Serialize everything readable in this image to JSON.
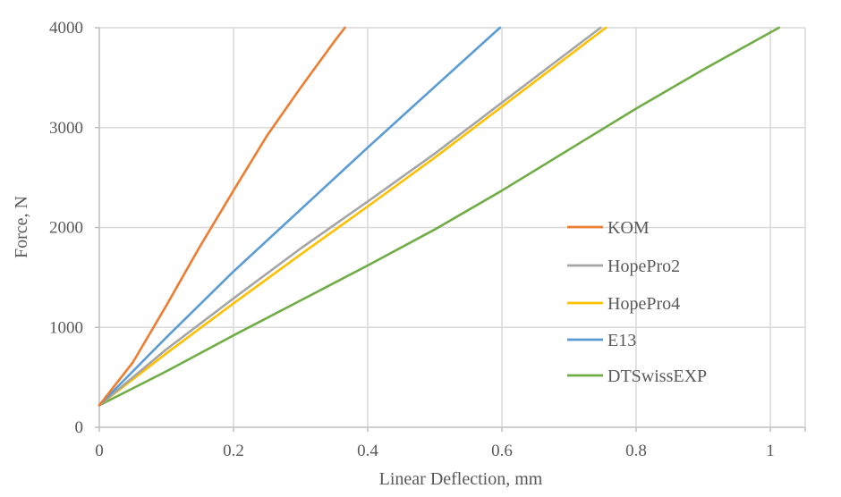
{
  "chart_data": {
    "type": "line",
    "title": "",
    "xlabel": "Linear Deflection, mm",
    "ylabel": "Force, N",
    "xlim": [
      0,
      1.05
    ],
    "ylim": [
      0,
      4000
    ],
    "grid": true,
    "legend_position": "right",
    "x_ticks": [
      {
        "value": 0,
        "label": "0"
      },
      {
        "value": 0.2,
        "label": "0.2"
      },
      {
        "value": 0.4,
        "label": "0.4"
      },
      {
        "value": 0.6,
        "label": "0.6"
      },
      {
        "value": 0.8,
        "label": "0.8"
      },
      {
        "value": 1.0,
        "label": "1"
      }
    ],
    "y_ticks": [
      {
        "value": 0,
        "label": "0"
      },
      {
        "value": 1000,
        "label": "1000"
      },
      {
        "value": 2000,
        "label": "2000"
      },
      {
        "value": 3000,
        "label": "3000"
      },
      {
        "value": 4000,
        "label": "4000"
      }
    ],
    "series": [
      {
        "name": "KOM",
        "color": "#ED7D31",
        "x": [
          0,
          0.05,
          0.1,
          0.15,
          0.2,
          0.25,
          0.3,
          0.35,
          0.366
        ],
        "y": [
          220,
          650,
          1220,
          1810,
          2370,
          2920,
          3400,
          3860,
          4000
        ]
      },
      {
        "name": "HopePro2",
        "color": "#A5A5A5",
        "x": [
          0,
          0.1,
          0.2,
          0.3,
          0.4,
          0.5,
          0.6,
          0.7,
          0.747
        ],
        "y": [
          220,
          780,
          1290,
          1790,
          2260,
          2740,
          3250,
          3760,
          4000
        ]
      },
      {
        "name": "HopePro4",
        "color": "#FFC000",
        "x": [
          0,
          0.1,
          0.2,
          0.3,
          0.4,
          0.5,
          0.6,
          0.7,
          0.755
        ],
        "y": [
          220,
          740,
          1240,
          1730,
          2210,
          2700,
          3210,
          3720,
          4000
        ]
      },
      {
        "name": "E13",
        "color": "#5B9BD5",
        "x": [
          0,
          0.1,
          0.2,
          0.3,
          0.4,
          0.5,
          0.597
        ],
        "y": [
          220,
          900,
          1560,
          2180,
          2800,
          3410,
          4000
        ]
      },
      {
        "name": "DTSwissEXP",
        "color": "#70AD47",
        "x": [
          0,
          0.1,
          0.2,
          0.3,
          0.4,
          0.5,
          0.6,
          0.7,
          0.8,
          0.9,
          1.013
        ],
        "y": [
          220,
          560,
          920,
          1270,
          1620,
          1980,
          2370,
          2780,
          3190,
          3580,
          4000
        ]
      }
    ]
  }
}
